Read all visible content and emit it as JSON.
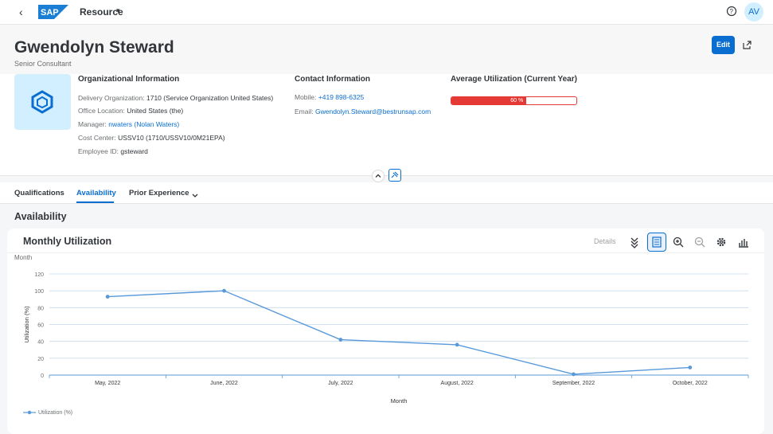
{
  "shell": {
    "back_glyph": "‹",
    "logo_text": "SAP",
    "app_title": "Resource",
    "caret": "▾",
    "avatar_initials": "AV"
  },
  "header": {
    "name": "Gwendolyn Steward",
    "role": "Senior Consultant",
    "edit_label": "Edit"
  },
  "org_info": {
    "title": "Organizational Information",
    "delivery_org_label": "Delivery Organization:",
    "delivery_org_value": "1710 (Service Organization United States)",
    "office_label": "Office Location:",
    "office_value": "United States (the)",
    "manager_label": "Manager:",
    "manager_value": "nwaters (Nolan Waters)",
    "cost_center_label": "Cost Center:",
    "cost_center_value": "USSV10 (1710/USSV10/0M21EPA)",
    "employee_id_label": "Employee ID:",
    "employee_id_value": "gsteward"
  },
  "contact_info": {
    "title": "Contact Information",
    "mobile_label": "Mobile:",
    "mobile_value": "+419 898-6325",
    "email_label": "Email:",
    "email_value": "Gwendolyn.Steward@bestrunsap.com"
  },
  "utilization": {
    "title": "Average Utilization (Current Year)",
    "percent": 60,
    "label": "60 %",
    "color": "#e53935"
  },
  "tabs": [
    {
      "label": "Qualifications"
    },
    {
      "label": "Availability"
    },
    {
      "label": "Prior Experience"
    }
  ],
  "section_title": "Availability",
  "card": {
    "title": "Monthly Utilization",
    "details_label": "Details"
  },
  "chart_data": {
    "type": "line",
    "title": "Monthly Utilization",
    "top_label": "Month",
    "xlabel": "Month",
    "ylabel": "Utilization (%)",
    "ylim": [
      0,
      120
    ],
    "yticks": [
      0,
      20,
      40,
      60,
      80,
      100,
      120
    ],
    "categories": [
      "May, 2022",
      "June, 2022",
      "July, 2022",
      "August, 2022",
      "September, 2022",
      "October, 2022"
    ],
    "series": [
      {
        "name": "Utilization (%)",
        "values": [
          93,
          100,
          42,
          36,
          1,
          9
        ],
        "color": "#5899da"
      }
    ],
    "grid": true,
    "legend_position": "bottom-left"
  }
}
